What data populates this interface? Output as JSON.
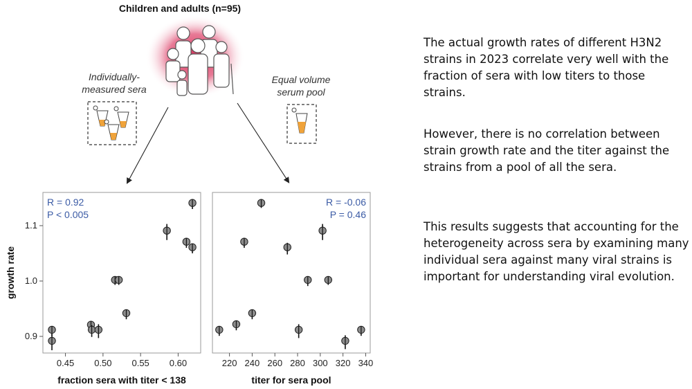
{
  "header": {
    "title": "Children and adults (n=95)"
  },
  "labels": {
    "individual_line1": "Individually-",
    "individual_line2": "measured sera",
    "pool_line1": "Equal volume",
    "pool_line2": "serum pool"
  },
  "text": {
    "p1": "The actual growth rates of different H3N2 strains in 2023 correlate very well with the fraction of sera with low titers to those strains.",
    "p2": "However, there is no correlation between strain growth rate and the titer against the strains from a pool of all the sera.",
    "p3": "This results suggests that accounting for the heterogeneity across sera by examining many individual sera against many viral strains is important for understanding viral evolution."
  },
  "colors": {
    "stat": "#3b5ba5",
    "point": "#8c8c8c",
    "glow": "#d4234f"
  },
  "chart_data": [
    {
      "type": "scatter",
      "xlabel": "fraction sera with titer < 138",
      "ylabel": "growth rate",
      "xlim": [
        0.42,
        0.63
      ],
      "ylim": [
        0.87,
        1.16
      ],
      "xticks": [
        0.45,
        0.5,
        0.55,
        0.6
      ],
      "xtick_labels": [
        "0.45",
        "0.50",
        "0.55",
        "0.60"
      ],
      "yticks": [
        0.9,
        1.0,
        1.1
      ],
      "ytick_labels": [
        "0.9",
        "1.0",
        "1.1"
      ],
      "stats": [
        "R = 0.92",
        "P < 0.005"
      ],
      "points": [
        {
          "x": 0.432,
          "y": 0.912,
          "err": 0.006
        },
        {
          "x": 0.432,
          "y": 0.892,
          "err": 0.012
        },
        {
          "x": 0.484,
          "y": 0.921,
          "err": 0.006
        },
        {
          "x": 0.485,
          "y": 0.912,
          "err": 0.008
        },
        {
          "x": 0.494,
          "y": 0.912,
          "err": 0.01
        },
        {
          "x": 0.516,
          "y": 1.002,
          "err": 0.004
        },
        {
          "x": 0.521,
          "y": 1.002,
          "err": 0.004
        },
        {
          "x": 0.531,
          "y": 0.942,
          "err": 0.006
        },
        {
          "x": 0.585,
          "y": 1.091,
          "err": 0.012
        },
        {
          "x": 0.611,
          "y": 1.071,
          "err": 0.006
        },
        {
          "x": 0.619,
          "y": 1.061,
          "err": 0.006
        },
        {
          "x": 0.619,
          "y": 1.141,
          "err": 0.006
        }
      ]
    },
    {
      "type": "scatter",
      "xlabel": "titer for sera pool",
      "ylabel": "",
      "xlim": [
        205,
        344
      ],
      "ylim": [
        0.87,
        1.16
      ],
      "xticks": [
        220,
        240,
        260,
        280,
        300,
        320,
        340
      ],
      "xtick_labels": [
        "220",
        "240",
        "260",
        "280",
        "300",
        "320",
        "340"
      ],
      "stats": [
        "R = -0.06",
        "P = 0.46"
      ],
      "points": [
        {
          "x": 211,
          "y": 0.912,
          "err": 0.006
        },
        {
          "x": 226,
          "y": 0.922,
          "err": 0.006
        },
        {
          "x": 233,
          "y": 1.071,
          "err": 0.006
        },
        {
          "x": 240,
          "y": 0.942,
          "err": 0.006
        },
        {
          "x": 248,
          "y": 1.141,
          "err": 0.004
        },
        {
          "x": 271,
          "y": 1.061,
          "err": 0.008
        },
        {
          "x": 281,
          "y": 0.912,
          "err": 0.01
        },
        {
          "x": 289,
          "y": 1.002,
          "err": 0.006
        },
        {
          "x": 302,
          "y": 1.091,
          "err": 0.012
        },
        {
          "x": 307,
          "y": 1.002,
          "err": 0.004
        },
        {
          "x": 322,
          "y": 0.892,
          "err": 0.01
        },
        {
          "x": 336,
          "y": 0.912,
          "err": 0.006
        }
      ]
    }
  ]
}
